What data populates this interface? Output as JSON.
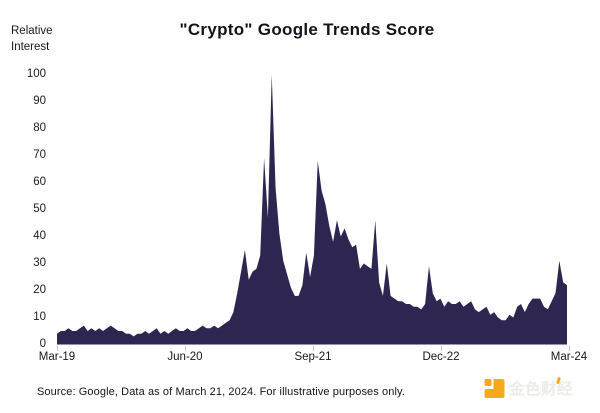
{
  "header": {
    "title": "\"Crypto\" Google Trends Score",
    "y_axis_title": "Relative Interest"
  },
  "chart_data": {
    "type": "area",
    "title": "\"Crypto\" Google Trends Score",
    "ylabel": "Relative Interest",
    "ylim": [
      0,
      100
    ],
    "y_ticks": [
      0,
      10,
      20,
      30,
      40,
      50,
      60,
      70,
      80,
      90,
      100
    ],
    "x_ticks": [
      "Mar-19",
      "Jun-20",
      "Sep-21",
      "Dec-22",
      "Mar-24"
    ],
    "x_range": "Mar-2019 to Mar-21-2024",
    "sampling": "approx biweekly, evenly spaced",
    "grid": false,
    "legend": false,
    "fill_color": "#2E2651",
    "values": [
      4,
      5,
      5,
      6,
      5,
      5,
      6,
      7,
      5,
      6,
      5,
      6,
      5,
      6,
      7,
      6,
      5,
      5,
      4,
      4,
      3,
      4,
      4,
      5,
      4,
      5,
      6,
      4,
      5,
      4,
      5,
      6,
      5,
      5,
      6,
      5,
      5,
      6,
      7,
      6,
      6,
      7,
      6,
      7,
      8,
      9,
      12,
      19,
      27,
      35,
      24,
      27,
      28,
      33,
      69,
      47,
      100,
      58,
      41,
      31,
      26,
      21,
      18,
      18,
      22,
      34,
      25,
      33,
      68,
      57,
      52,
      44,
      38,
      46,
      40,
      43,
      39,
      36,
      37,
      28,
      30,
      29,
      28,
      46,
      23,
      18,
      30,
      18,
      17,
      16,
      16,
      15,
      15,
      14,
      14,
      13,
      15,
      29,
      19,
      16,
      17,
      14,
      16,
      15,
      15,
      16,
      14,
      15,
      16,
      13,
      12,
      13,
      14,
      11,
      12,
      10,
      9,
      9,
      11,
      10,
      14,
      15,
      12,
      15,
      17,
      17,
      17,
      14,
      13,
      16,
      19,
      31,
      23,
      22
    ],
    "annotations": {
      "peak_value": 100,
      "peak_period": "May-2021",
      "secondary_peak": 68,
      "secondary_peak_period": "Oct/Nov-2021",
      "final_value": 22
    }
  },
  "footer": {
    "source": "Source: Google, Data as of March 21, 2024. For illustrative purposes only.",
    "logo_text": "金色财经"
  },
  "colors": {
    "area_fill": "#2E2651",
    "text_dark": "#17161F",
    "tick_gray": "#C7C7CD",
    "brand_orange": "#F8A81C",
    "brand_text_gray": "#EDEBE5"
  }
}
